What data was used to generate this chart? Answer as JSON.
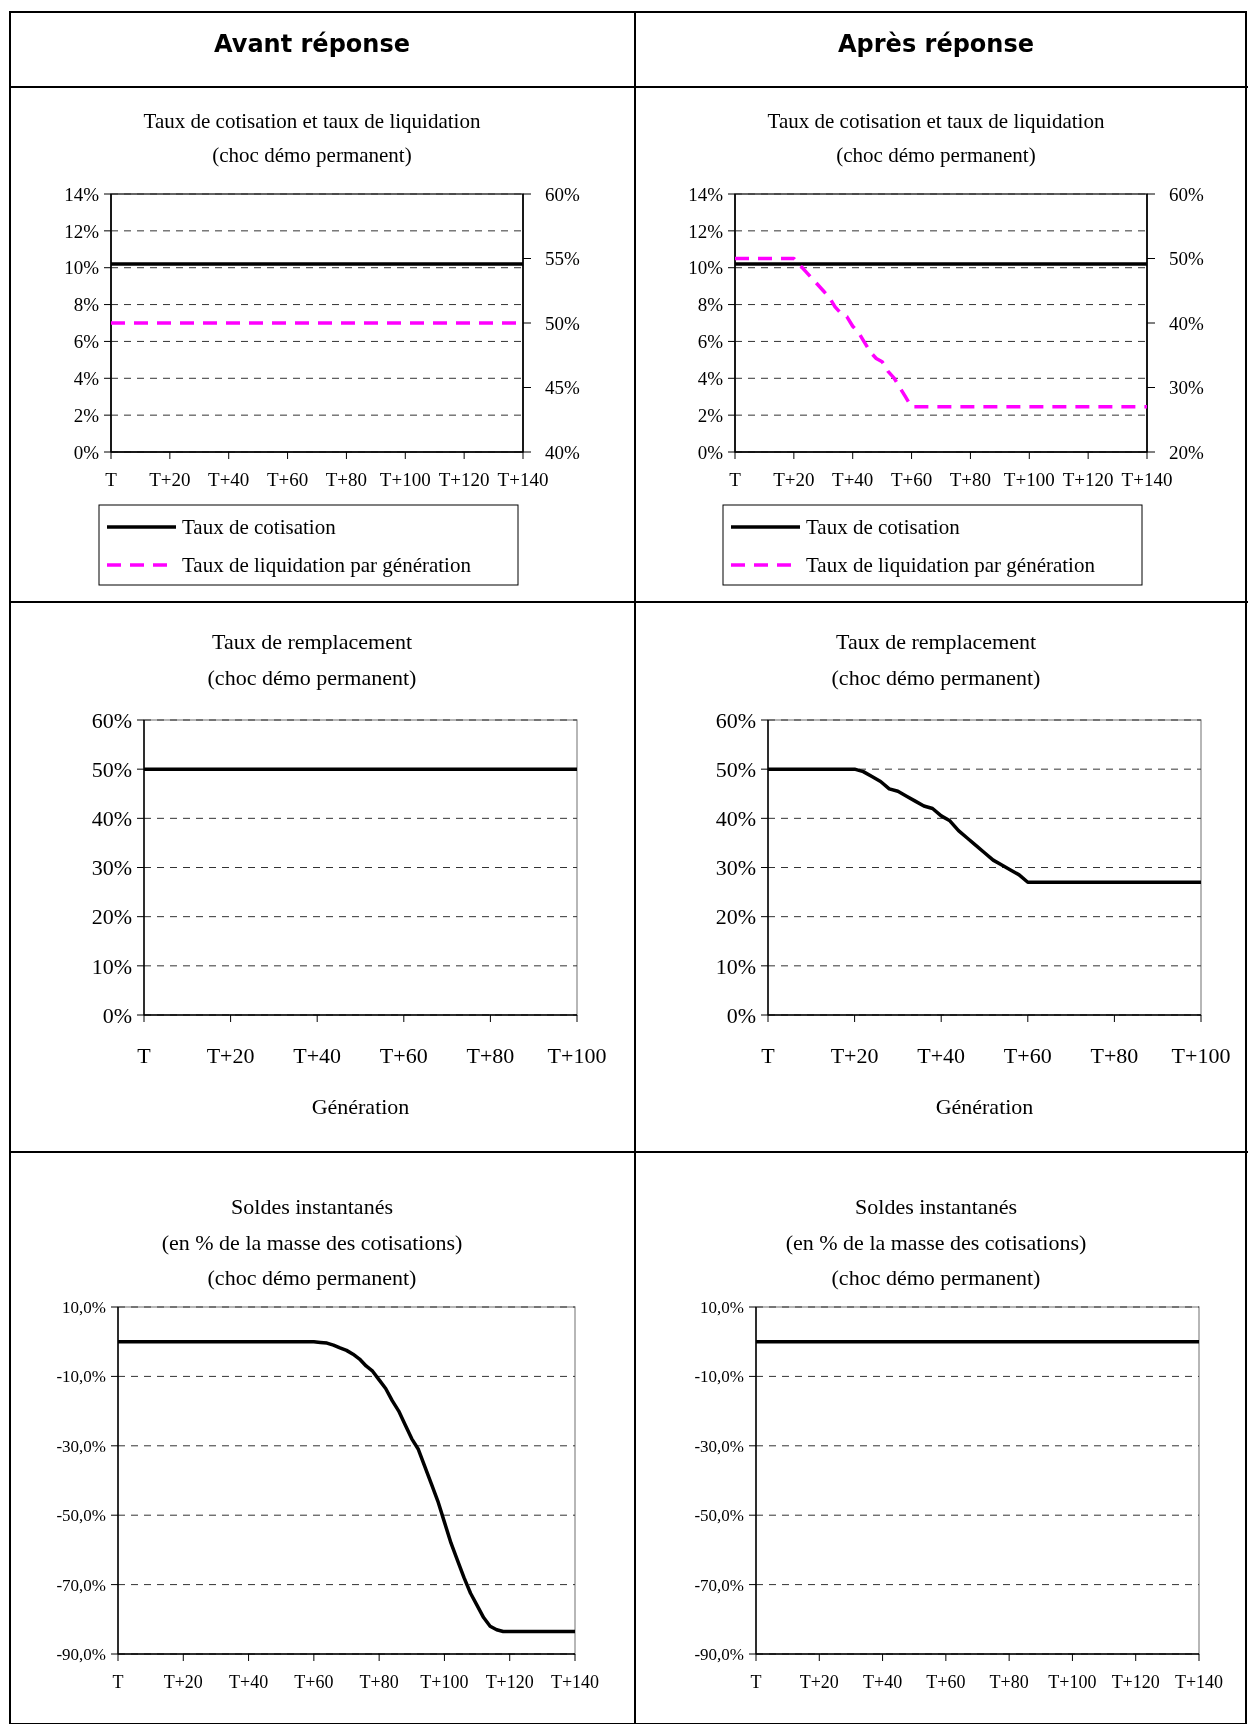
{
  "chart_data": [
    {
      "type": "line",
      "title": "Taux de cotisation et taux de liquidation",
      "subtitle": "(choc démo permanent)",
      "annotations": [
        "Avant réponse"
      ],
      "categories": [
        "T",
        null,
        null,
        null,
        null,
        null,
        null,
        null,
        null,
        null,
        "T+20",
        null,
        null,
        null,
        null,
        null,
        null,
        null,
        null,
        null,
        "T+40",
        null,
        null,
        null,
        null,
        null,
        null,
        null,
        null,
        null,
        "T+60",
        null,
        null,
        null,
        null,
        null,
        null,
        null,
        null,
        null,
        "T+80",
        null,
        null,
        null,
        null,
        null,
        null,
        null,
        null,
        null,
        "T+100",
        null,
        null,
        null,
        null,
        null,
        null,
        null,
        null,
        null,
        "T+120",
        null,
        null,
        null,
        null,
        null,
        null,
        null,
        null,
        null,
        "T+140"
      ],
      "ylim": [
        0,
        14
      ],
      "yticks": [
        {
          "value": 0,
          "label": "0%"
        },
        {
          "value": 2,
          "label": "2%"
        },
        {
          "value": 4,
          "label": "4%"
        },
        {
          "value": 6,
          "label": "6%"
        },
        {
          "value": 8,
          "label": "8%"
        },
        {
          "value": 10,
          "label": "10%"
        },
        {
          "value": 12,
          "label": "12%"
        },
        {
          "value": 14,
          "label": "14%"
        }
      ],
      "y2lim": [
        40,
        60
      ],
      "y2ticks": [
        {
          "value": 40,
          "label": "40%"
        },
        {
          "value": 45,
          "label": "45%"
        },
        {
          "value": 50,
          "label": "50%"
        },
        {
          "value": 55,
          "label": "55%"
        },
        {
          "value": 60,
          "label": "60%"
        }
      ],
      "grid": "y",
      "legend": "bottom",
      "series": [
        {
          "name": "Taux de cotisation",
          "color": "#000000",
          "values": [
            10.2,
            10.2,
            10.2,
            10.2,
            10.2,
            10.2,
            10.2,
            10.2,
            10.2,
            10.2,
            10.2,
            10.2,
            10.2,
            10.2,
            10.2,
            10.2,
            10.2,
            10.2,
            10.2,
            10.2,
            10.2,
            10.2,
            10.2,
            10.2,
            10.2,
            10.2,
            10.2,
            10.2,
            10.2,
            10.2,
            10.2,
            10.2,
            10.2,
            10.2,
            10.2,
            10.2,
            10.2,
            10.2,
            10.2,
            10.2,
            10.2,
            10.2,
            10.2,
            10.2,
            10.2,
            10.2,
            10.2,
            10.2,
            10.2,
            10.2,
            10.2,
            10.2,
            10.2,
            10.2,
            10.2,
            10.2,
            10.2,
            10.2,
            10.2,
            10.2,
            10.2,
            10.2,
            10.2,
            10.2,
            10.2,
            10.2,
            10.2,
            10.2,
            10.2,
            10.2,
            10.2
          ]
        },
        {
          "name": "Taux de liquidation par génération",
          "color": "#ff00ff",
          "axis": "y2",
          "line_style": "dashed",
          "values": [
            50,
            50,
            50,
            50,
            50,
            50,
            50,
            50,
            50,
            50,
            50,
            50,
            50,
            50,
            50,
            50,
            50,
            50,
            50,
            50,
            50,
            50,
            50,
            50,
            50,
            50,
            50,
            50,
            50,
            50,
            50,
            50,
            50,
            50,
            50,
            50,
            50,
            50,
            50,
            50,
            50,
            50,
            50,
            50,
            50,
            50,
            50,
            50,
            50,
            50,
            50,
            50,
            50,
            50,
            50,
            50,
            50,
            50,
            50,
            50,
            50,
            50,
            50,
            50,
            50,
            50,
            50,
            50,
            50,
            50,
            50
          ]
        }
      ]
    },
    {
      "type": "line",
      "title": "Taux de cotisation et taux de liquidation",
      "subtitle": "(choc démo permanent)",
      "annotations": [
        "Après réponse"
      ],
      "categories": [
        "T",
        null,
        null,
        null,
        null,
        null,
        null,
        null,
        null,
        null,
        "T+20",
        null,
        null,
        null,
        null,
        null,
        null,
        null,
        null,
        null,
        "T+40",
        null,
        null,
        null,
        null,
        null,
        null,
        null,
        null,
        null,
        "T+60",
        null,
        null,
        null,
        null,
        null,
        null,
        null,
        null,
        null,
        "T+80",
        null,
        null,
        null,
        null,
        null,
        null,
        null,
        null,
        null,
        "T+100",
        null,
        null,
        null,
        null,
        null,
        null,
        null,
        null,
        null,
        "T+120",
        null,
        null,
        null,
        null,
        null,
        null,
        null,
        null,
        null,
        "T+140"
      ],
      "ylim": [
        0,
        14
      ],
      "yticks": [
        {
          "value": 0,
          "label": "0%"
        },
        {
          "value": 2,
          "label": "2%"
        },
        {
          "value": 4,
          "label": "4%"
        },
        {
          "value": 6,
          "label": "6%"
        },
        {
          "value": 8,
          "label": "8%"
        },
        {
          "value": 10,
          "label": "10%"
        },
        {
          "value": 12,
          "label": "12%"
        },
        {
          "value": 14,
          "label": "14%"
        }
      ],
      "y2lim": [
        20,
        60
      ],
      "y2ticks": [
        {
          "value": 20,
          "label": "20%"
        },
        {
          "value": 30,
          "label": "30%"
        },
        {
          "value": 40,
          "label": "40%"
        },
        {
          "value": 50,
          "label": "50%"
        },
        {
          "value": 60,
          "label": "60%"
        }
      ],
      "grid": "y",
      "legend": "bottom",
      "series": [
        {
          "name": "Taux de cotisation",
          "color": "#000000",
          "values": [
            10.2,
            10.2,
            10.2,
            10.2,
            10.2,
            10.2,
            10.2,
            10.2,
            10.2,
            10.2,
            10.2,
            10.2,
            10.2,
            10.2,
            10.2,
            10.2,
            10.2,
            10.2,
            10.2,
            10.2,
            10.2,
            10.2,
            10.2,
            10.2,
            10.2,
            10.2,
            10.2,
            10.2,
            10.2,
            10.2,
            10.2,
            10.2,
            10.2,
            10.2,
            10.2,
            10.2,
            10.2,
            10.2,
            10.2,
            10.2,
            10.2,
            10.2,
            10.2,
            10.2,
            10.2,
            10.2,
            10.2,
            10.2,
            10.2,
            10.2,
            10.2,
            10.2,
            10.2,
            10.2,
            10.2,
            10.2,
            10.2,
            10.2,
            10.2,
            10.2,
            10.2,
            10.2,
            10.2,
            10.2,
            10.2,
            10.2,
            10.2,
            10.2,
            10.2,
            10.2,
            10.2
          ]
        },
        {
          "name": "Taux de liquidation par génération",
          "color": "#ff00ff",
          "axis": "y2",
          "line_style": "dashed",
          "values": [
            50,
            50,
            50,
            50,
            50,
            50,
            50,
            50,
            50,
            50,
            50,
            49,
            48,
            47,
            46,
            45,
            44,
            42.5,
            41.5,
            41,
            39.5,
            38.5,
            37,
            35.5,
            34.5,
            34,
            32.5,
            31.5,
            30,
            28.5,
            27,
            27,
            27,
            27,
            27,
            27,
            27,
            27,
            27,
            27,
            27,
            27,
            27,
            27,
            27,
            27,
            27,
            27,
            27,
            27,
            27,
            27,
            27,
            27,
            27,
            27,
            27,
            27,
            27,
            27,
            27,
            27,
            27,
            27,
            27,
            27,
            27,
            27,
            27,
            27,
            27
          ]
        }
      ]
    },
    {
      "type": "line",
      "title": "Taux de remplacement",
      "subtitle": "(choc démo permanent)",
      "xlabel": "Génération",
      "categories": [
        "T",
        null,
        null,
        null,
        null,
        null,
        null,
        null,
        null,
        null,
        "T+20",
        null,
        null,
        null,
        null,
        null,
        null,
        null,
        null,
        null,
        "T+40",
        null,
        null,
        null,
        null,
        null,
        null,
        null,
        null,
        null,
        "T+60",
        null,
        null,
        null,
        null,
        null,
        null,
        null,
        null,
        null,
        "T+80",
        null,
        null,
        null,
        null,
        null,
        null,
        null,
        null,
        null,
        "T+100"
      ],
      "ylim": [
        0,
        60
      ],
      "yticks": [
        {
          "value": 0,
          "label": "0%"
        },
        {
          "value": 10,
          "label": "10%"
        },
        {
          "value": 20,
          "label": "20%"
        },
        {
          "value": 30,
          "label": "30%"
        },
        {
          "value": 40,
          "label": "40%"
        },
        {
          "value": 50,
          "label": "50%"
        },
        {
          "value": 60,
          "label": "60%"
        }
      ],
      "grid": "y",
      "series": [
        {
          "color": "#000000",
          "values": [
            50,
            50,
            50,
            50,
            50,
            50,
            50,
            50,
            50,
            50,
            50,
            50,
            50,
            50,
            50,
            50,
            50,
            50,
            50,
            50,
            50,
            50,
            50,
            50,
            50,
            50,
            50,
            50,
            50,
            50,
            50,
            50,
            50,
            50,
            50,
            50,
            50,
            50,
            50,
            50,
            50,
            50,
            50,
            50,
            50,
            50,
            50,
            50,
            50,
            50,
            50
          ]
        }
      ]
    },
    {
      "type": "line",
      "title": "Taux de remplacement",
      "subtitle": "(choc démo permanent)",
      "xlabel": "Génération",
      "categories": [
        "T",
        null,
        null,
        null,
        null,
        null,
        null,
        null,
        null,
        null,
        "T+20",
        null,
        null,
        null,
        null,
        null,
        null,
        null,
        null,
        null,
        "T+40",
        null,
        null,
        null,
        null,
        null,
        null,
        null,
        null,
        null,
        "T+60",
        null,
        null,
        null,
        null,
        null,
        null,
        null,
        null,
        null,
        "T+80",
        null,
        null,
        null,
        null,
        null,
        null,
        null,
        null,
        null,
        "T+100"
      ],
      "ylim": [
        0,
        60
      ],
      "yticks": [
        {
          "value": 0,
          "label": "0%"
        },
        {
          "value": 10,
          "label": "10%"
        },
        {
          "value": 20,
          "label": "20%"
        },
        {
          "value": 30,
          "label": "30%"
        },
        {
          "value": 40,
          "label": "40%"
        },
        {
          "value": 50,
          "label": "50%"
        },
        {
          "value": 60,
          "label": "60%"
        }
      ],
      "grid": "y",
      "series": [
        {
          "color": "#000000",
          "values": [
            50,
            50,
            50,
            50,
            50,
            50,
            50,
            50,
            50,
            50,
            50,
            49.5,
            48.5,
            47.5,
            46,
            45.5,
            44.5,
            43.5,
            42.5,
            42,
            40.5,
            39.5,
            37.5,
            36,
            34.5,
            33,
            31.5,
            30.5,
            29.5,
            28.5,
            27,
            27,
            27,
            27,
            27,
            27,
            27,
            27,
            27,
            27,
            27,
            27,
            27,
            27,
            27,
            27,
            27,
            27,
            27,
            27,
            27
          ]
        }
      ]
    },
    {
      "type": "line",
      "title": "Soldes instantanés",
      "subtitle": "(en % de la masse des cotisations)\n(choc démo permanent)",
      "categories": [
        "T",
        null,
        null,
        null,
        null,
        null,
        null,
        null,
        null,
        null,
        "T+20",
        null,
        null,
        null,
        null,
        null,
        null,
        null,
        null,
        null,
        "T+40",
        null,
        null,
        null,
        null,
        null,
        null,
        null,
        null,
        null,
        "T+60",
        null,
        null,
        null,
        null,
        null,
        null,
        null,
        null,
        null,
        "T+80",
        null,
        null,
        null,
        null,
        null,
        null,
        null,
        null,
        null,
        "T+100",
        null,
        null,
        null,
        null,
        null,
        null,
        null,
        null,
        null,
        "T+120",
        null,
        null,
        null,
        null,
        null,
        null,
        null,
        null,
        null,
        "T+140"
      ],
      "ylim": [
        -90,
        10
      ],
      "yticks": [
        {
          "value": -90,
          "label": "-90,0%"
        },
        {
          "value": -70,
          "label": "-70,0%"
        },
        {
          "value": -50,
          "label": "-50,0%"
        },
        {
          "value": -30,
          "label": "-30,0%"
        },
        {
          "value": -10,
          "label": "-10,0%"
        },
        {
          "value": 10,
          "label": "10,0%"
        }
      ],
      "grid": "y",
      "series": [
        {
          "color": "#000000",
          "values": [
            0,
            0,
            0,
            0,
            0,
            0,
            0,
            0,
            0,
            0,
            0,
            0,
            0,
            0,
            0,
            0,
            0,
            0,
            0,
            0,
            0,
            0,
            0,
            0,
            0,
            0,
            0,
            0,
            0,
            0,
            0,
            -0.2,
            -0.4,
            -1,
            -1.8,
            -2.5,
            -3.6,
            -5,
            -7,
            -8.5,
            -11,
            -13.5,
            -17,
            -20,
            -24,
            -28,
            -31,
            -36,
            -41,
            -46,
            -52,
            -58,
            -63,
            -68,
            -72.5,
            -76,
            -79.5,
            -82,
            -83,
            -83.5,
            -83.5,
            -83.5,
            -83.5,
            -83.5,
            -83.5,
            -83.5,
            -83.5,
            -83.5,
            -83.5,
            -83.5,
            -83.5
          ]
        }
      ]
    },
    {
      "type": "line",
      "title": "Soldes instantanés",
      "subtitle": "(en % de la masse des cotisations)\n(choc démo permanent)",
      "categories": [
        "T",
        null,
        null,
        null,
        null,
        null,
        null,
        null,
        null,
        null,
        "T+20",
        null,
        null,
        null,
        null,
        null,
        null,
        null,
        null,
        null,
        "T+40",
        null,
        null,
        null,
        null,
        null,
        null,
        null,
        null,
        null,
        "T+60",
        null,
        null,
        null,
        null,
        null,
        null,
        null,
        null,
        null,
        "T+80",
        null,
        null,
        null,
        null,
        null,
        null,
        null,
        null,
        null,
        "T+100",
        null,
        null,
        null,
        null,
        null,
        null,
        null,
        null,
        null,
        "T+120",
        null,
        null,
        null,
        null,
        null,
        null,
        null,
        null,
        null,
        "T+140"
      ],
      "ylim": [
        -90,
        10
      ],
      "yticks": [
        {
          "value": -90,
          "label": "-90,0%"
        },
        {
          "value": -70,
          "label": "-70,0%"
        },
        {
          "value": -50,
          "label": "-50,0%"
        },
        {
          "value": -30,
          "label": "-30,0%"
        },
        {
          "value": -10,
          "label": "-10,0%"
        },
        {
          "value": 10,
          "label": "10,0%"
        }
      ],
      "grid": "y",
      "series": [
        {
          "color": "#000000",
          "values": [
            0,
            0,
            0,
            0,
            0,
            0,
            0,
            0,
            0,
            0,
            0,
            0,
            0,
            0,
            0,
            0,
            0,
            0,
            0,
            0,
            0,
            0,
            0,
            0,
            0,
            0,
            0,
            0,
            0,
            0,
            0,
            0,
            0,
            0,
            0,
            0,
            0,
            0,
            0,
            0,
            0,
            0,
            0,
            0,
            0,
            0,
            0,
            0,
            0,
            0,
            0,
            0,
            0,
            0,
            0,
            0,
            0,
            0,
            0,
            0,
            0,
            0,
            0,
            0,
            0,
            0,
            0,
            0,
            0,
            0,
            0
          ]
        }
      ]
    }
  ]
}
